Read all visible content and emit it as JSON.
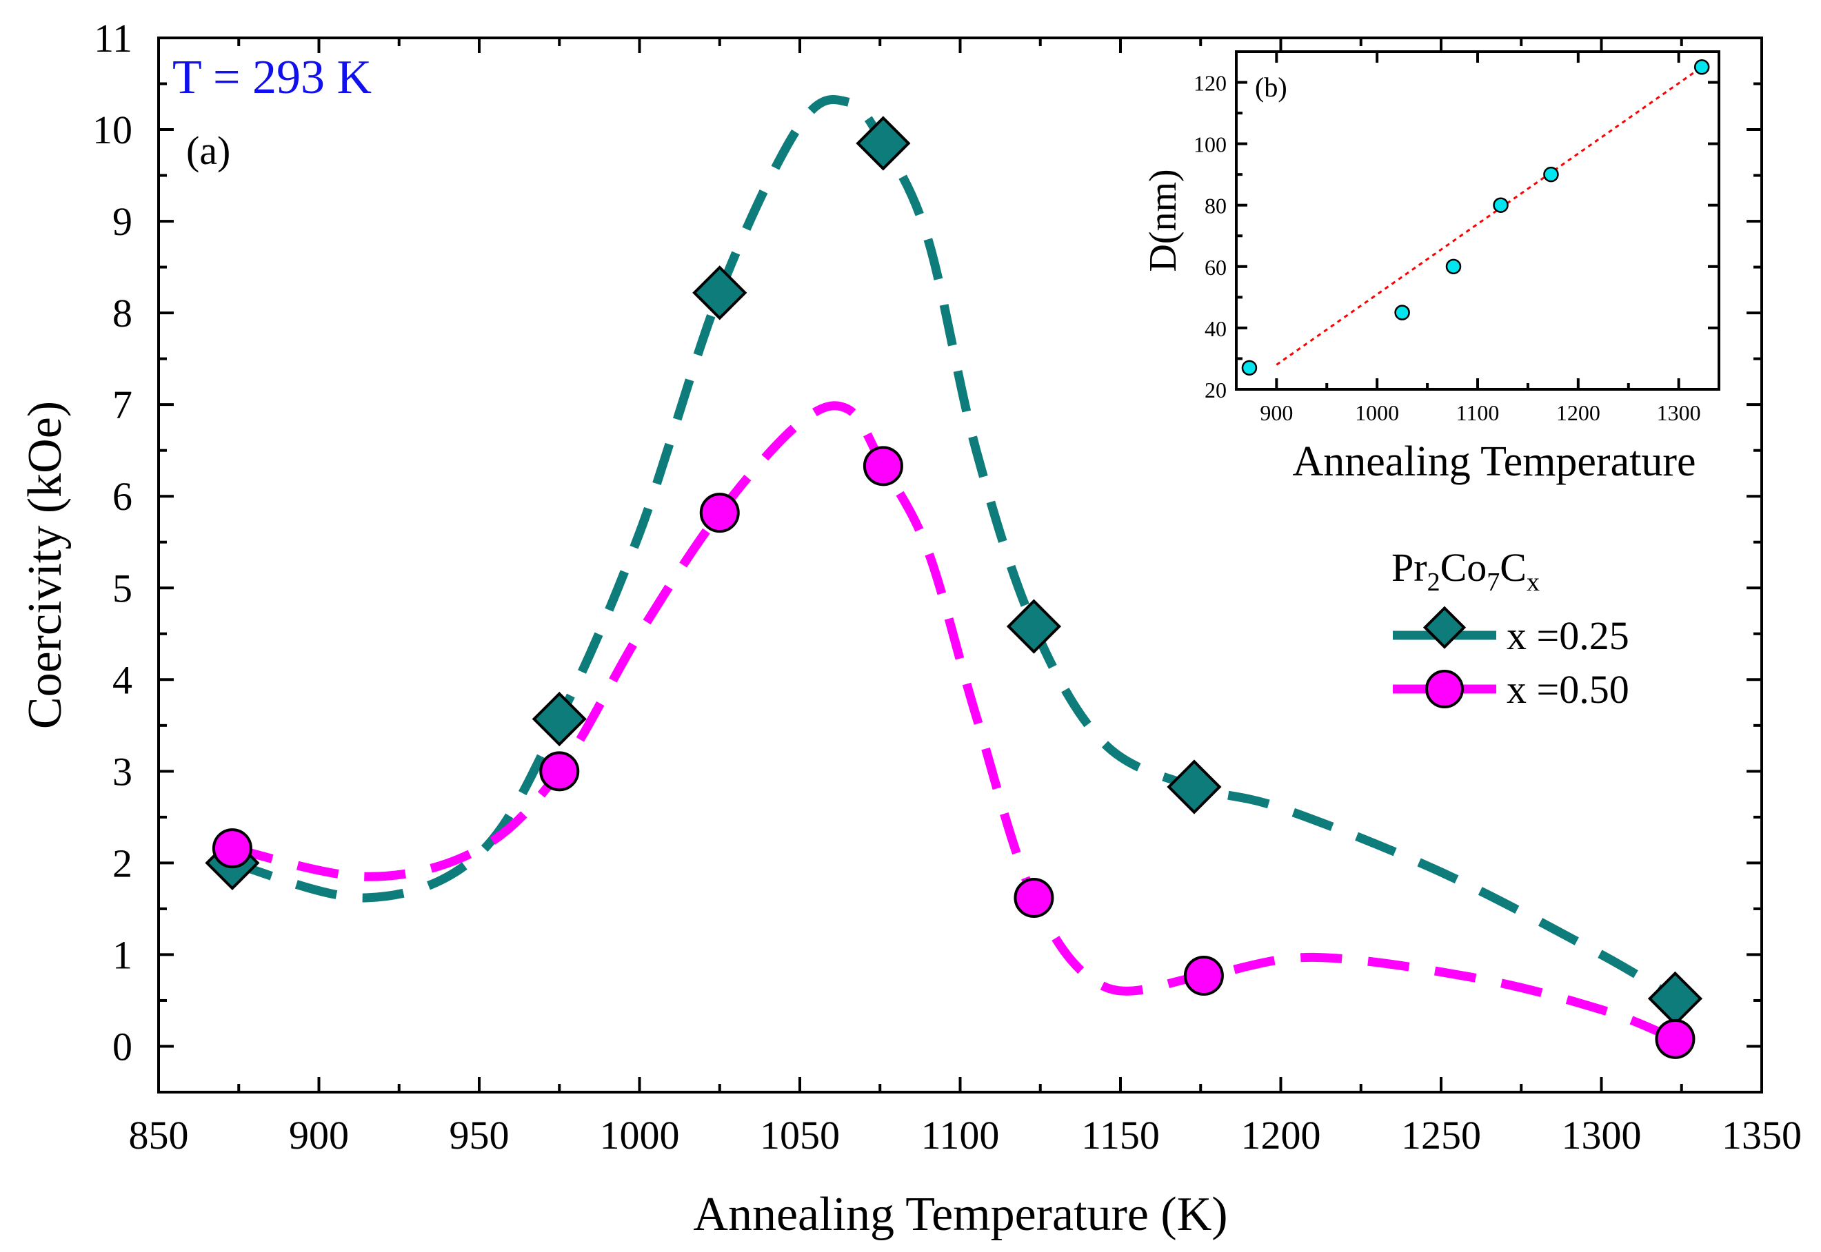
{
  "chart_data": [
    {
      "type": "line",
      "panel_label": "(a)",
      "annotation": "T = 293 K",
      "xlabel": "Annealing Temperature (K)",
      "ylabel": "Coercivity (kOe)",
      "xlim": [
        850,
        1350
      ],
      "ylim": [
        -0.5,
        11
      ],
      "xticks": [
        850,
        900,
        950,
        1000,
        1050,
        1100,
        1150,
        1200,
        1250,
        1300,
        1350
      ],
      "yticks": [
        0,
        1,
        2,
        3,
        4,
        5,
        6,
        7,
        8,
        9,
        10,
        11
      ],
      "legend_title": {
        "base": "Pr",
        "s1": "2",
        "mid1": "Co",
        "s2": "7",
        "mid2": "C",
        "s3": "x"
      },
      "legend_position": "right",
      "series": [
        {
          "name": "x =0.25",
          "marker": "diamond",
          "color": "#0e7c7b",
          "x": [
            873,
            975,
            1025,
            1076,
            1123,
            1173,
            1323
          ],
          "y": [
            2.0,
            3.57,
            8.22,
            9.85,
            4.58,
            2.83,
            0.52
          ],
          "curve": [
            [
              873,
              2.0
            ],
            [
              915,
              1.62
            ],
            [
              950,
              2.1
            ],
            [
              975,
              3.57
            ],
            [
              1000,
              5.6
            ],
            [
              1025,
              8.22
            ],
            [
              1050,
              10.05
            ],
            [
              1065,
              10.3
            ],
            [
              1076,
              9.85
            ],
            [
              1090,
              8.8
            ],
            [
              1105,
              6.5
            ],
            [
              1123,
              4.58
            ],
            [
              1145,
              3.3
            ],
            [
              1173,
              2.83
            ],
            [
              1200,
              2.6
            ],
            [
              1250,
              1.9
            ],
            [
              1300,
              1.0
            ],
            [
              1323,
              0.52
            ]
          ]
        },
        {
          "name": "x =0.50",
          "marker": "circle",
          "color": "#ff00ff",
          "x": [
            873,
            975,
            1025,
            1076,
            1123,
            1176,
            1323
          ],
          "y": [
            2.16,
            3.0,
            5.82,
            6.33,
            1.62,
            0.77,
            0.08
          ],
          "curve": [
            [
              873,
              2.16
            ],
            [
              915,
              1.85
            ],
            [
              950,
              2.15
            ],
            [
              975,
              3.0
            ],
            [
              1000,
              4.5
            ],
            [
              1025,
              5.82
            ],
            [
              1050,
              6.8
            ],
            [
              1065,
              6.95
            ],
            [
              1076,
              6.33
            ],
            [
              1090,
              5.4
            ],
            [
              1105,
              3.6
            ],
            [
              1123,
              1.62
            ],
            [
              1145,
              0.65
            ],
            [
              1176,
              0.77
            ],
            [
              1210,
              0.97
            ],
            [
              1260,
              0.75
            ],
            [
              1300,
              0.4
            ],
            [
              1323,
              0.08
            ]
          ]
        }
      ]
    },
    {
      "type": "scatter",
      "panel_label": "(b)",
      "xlabel": "Annealing Temperature",
      "ylabel": "D(nm)",
      "xlim": [
        860,
        1340
      ],
      "ylim": [
        20,
        130
      ],
      "xticks": [
        900,
        1000,
        1100,
        1200,
        1300
      ],
      "yticks": [
        20,
        40,
        60,
        80,
        100,
        120
      ],
      "x": [
        873,
        1025,
        1076,
        1123,
        1173,
        1323
      ],
      "y": [
        27,
        45,
        60,
        80,
        90,
        125
      ],
      "marker_color": "#00e5ee",
      "fit_line": {
        "x": [
          900,
          1323
        ],
        "y": [
          28,
          125
        ],
        "color": "#ff0000",
        "style": "dotted"
      }
    }
  ]
}
